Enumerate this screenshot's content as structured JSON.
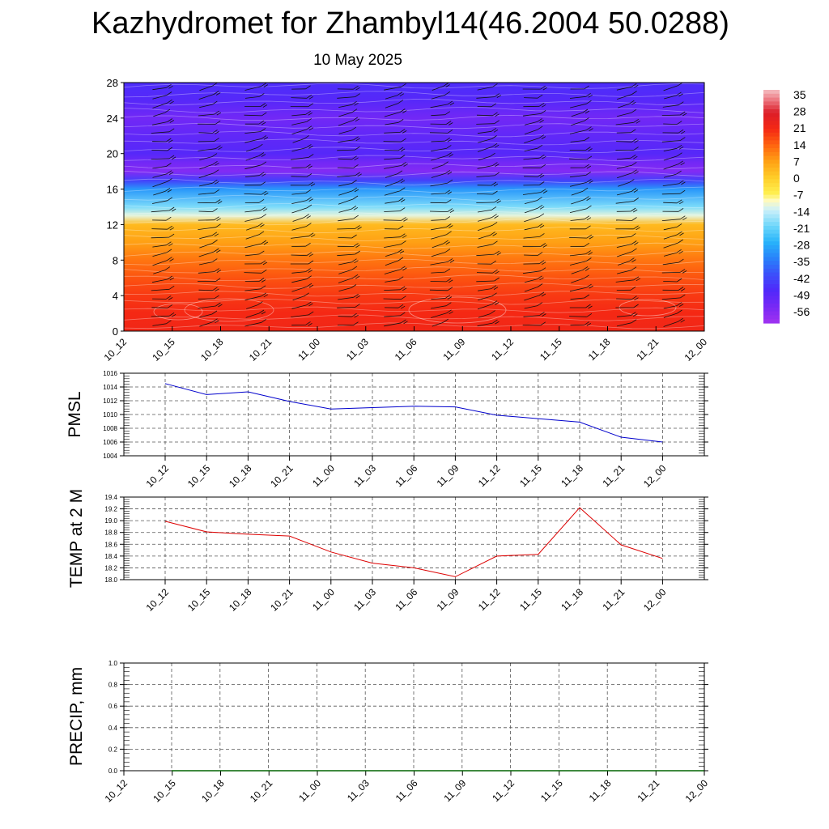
{
  "title": "Kazhydromet for Zhambyl14(46.2004 50.0288)",
  "subtitle": "10 May 2025",
  "chart_data": [
    {
      "type": "heatmap",
      "description_of_field": "height-time cross-section of temperature with wind barbs",
      "x_categories": [
        "10_12",
        "10_15",
        "10_18",
        "10_21",
        "11_00",
        "11_03",
        "11_06",
        "11_09",
        "11_12",
        "11_15",
        "11_18",
        "11_21",
        "12_00"
      ],
      "y_ticks": [
        0,
        4,
        8,
        12,
        16,
        20,
        24,
        28
      ],
      "ylim": [
        0,
        28
      ],
      "colorbar": {
        "labels": [
          "35",
          "28",
          "21",
          "14",
          "7",
          "0",
          "-7",
          "-14",
          "-21",
          "-28",
          "-35",
          "-42",
          "-49",
          "-56"
        ],
        "range": [
          -63,
          38
        ]
      },
      "level_temperature_profile": {
        "levels": [
          0,
          2,
          4,
          6,
          8,
          10,
          12,
          13,
          14,
          16,
          17,
          18,
          19,
          20,
          22,
          24,
          26,
          28
        ],
        "temps": [
          22,
          21,
          19,
          16,
          12,
          7,
          3,
          -12,
          -20,
          -32,
          -45,
          -58,
          -55,
          -50,
          -52,
          -55,
          -50,
          -48
        ]
      }
    },
    {
      "type": "line",
      "ylabel": "PMSL",
      "x_categories": [
        "10_12",
        "10_15",
        "10_18",
        "10_21",
        "11_00",
        "11_03",
        "11_06",
        "11_09",
        "11_12",
        "11_15",
        "11_18",
        "11_21",
        "12_00"
      ],
      "y_ticks": [
        1004,
        1006,
        1008,
        1010,
        1012,
        1014,
        1016
      ],
      "ylim": [
        1004,
        1016
      ],
      "series": [
        {
          "color": "#0000cc",
          "values": [
            1014.5,
            1012.9,
            1013.3,
            1011.9,
            1010.8,
            1011.0,
            1011.2,
            1011.1,
            1009.9,
            1009.4,
            1008.9,
            1006.7,
            1006.0
          ]
        }
      ]
    },
    {
      "type": "line",
      "ylabel": "TEMP at 2 M",
      "x_categories": [
        "10_12",
        "10_15",
        "10_18",
        "10_21",
        "11_00",
        "11_03",
        "11_06",
        "11_09",
        "11_12",
        "11_15",
        "11_18",
        "11_21",
        "12_00"
      ],
      "y_ticks": [
        "18.0",
        "18.2",
        "18.4",
        "18.6",
        "18.8",
        "19.0",
        "19.2",
        "19.4"
      ],
      "ylim": [
        18.0,
        19.4
      ],
      "series": [
        {
          "color": "#dd0000",
          "values": [
            18.99,
            18.81,
            18.77,
            18.74,
            18.47,
            18.28,
            18.2,
            18.05,
            18.4,
            18.43,
            19.22,
            18.59,
            18.36
          ]
        }
      ]
    },
    {
      "type": "line",
      "ylabel": "PRECIP, mm",
      "x_categories": [
        "10_12",
        "10_15",
        "10_18",
        "10_21",
        "11_00",
        "11_03",
        "11_06",
        "11_09",
        "11_12",
        "11_15",
        "11_18",
        "11_21",
        "12_00"
      ],
      "y_ticks": [
        "0.0",
        "0.2",
        "0.4",
        "0.6",
        "0.8",
        "1.0"
      ],
      "ylim": [
        0.0,
        1.0
      ],
      "series": [
        {
          "color": "#006400",
          "values": [
            0,
            0,
            0,
            0,
            0,
            0,
            0,
            0,
            0,
            0,
            0,
            0,
            0
          ]
        }
      ]
    }
  ]
}
